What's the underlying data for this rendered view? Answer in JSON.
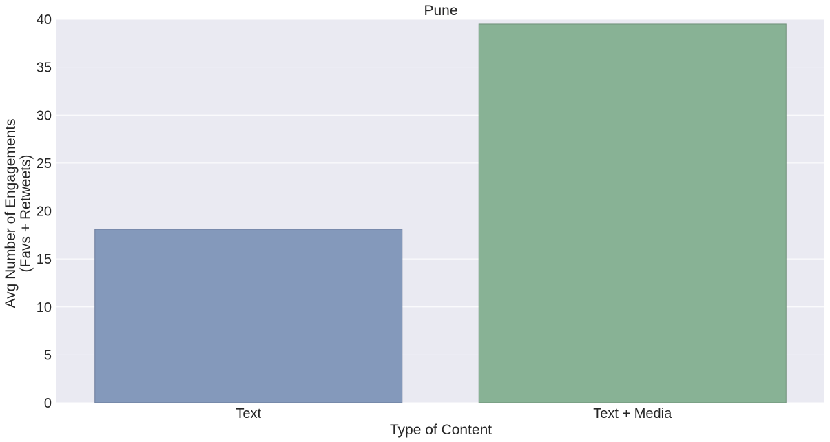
{
  "chart_data": {
    "type": "bar",
    "title": "Pune",
    "xlabel": "Type of Content",
    "ylabel": [
      "Avg Number of Engagements",
      "(Favs + Retweets)"
    ],
    "categories": [
      "Text",
      "Text + Media"
    ],
    "values": [
      18.1,
      39.5
    ],
    "ylim": [
      0,
      40
    ],
    "yticks": [
      "0",
      "5",
      "10",
      "15",
      "20",
      "25",
      "30",
      "35",
      "40"
    ],
    "grid": true,
    "legend": "none",
    "colors": {
      "plot_background": "#eaeaf2",
      "grid": "#ffffff",
      "bars": [
        "#8499bb",
        "#88b295"
      ],
      "bar_edges": [
        "#6a7a9a",
        "#6e9078"
      ]
    }
  }
}
